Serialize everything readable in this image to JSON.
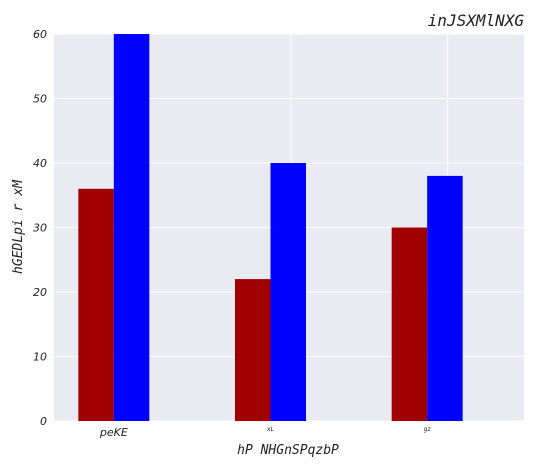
{
  "chart_data": {
    "type": "bar",
    "title": "inJSXMlNXG",
    "xlabel": "hP NHGnSPqzbP",
    "ylabel": "hGEDLpi r xM",
    "categories": [
      "peKE",
      "xL",
      "gz"
    ],
    "series": [
      {
        "color": "#a00000",
        "values": [
          36,
          22,
          30
        ]
      },
      {
        "color": "#0000ff",
        "values": [
          60,
          40,
          38
        ]
      }
    ],
    "ylim": [
      0,
      60
    ],
    "yticks": [
      0,
      10,
      20,
      30,
      40,
      50,
      60
    ],
    "grid": true,
    "legend": "none",
    "background": "#eaeaf2"
  }
}
